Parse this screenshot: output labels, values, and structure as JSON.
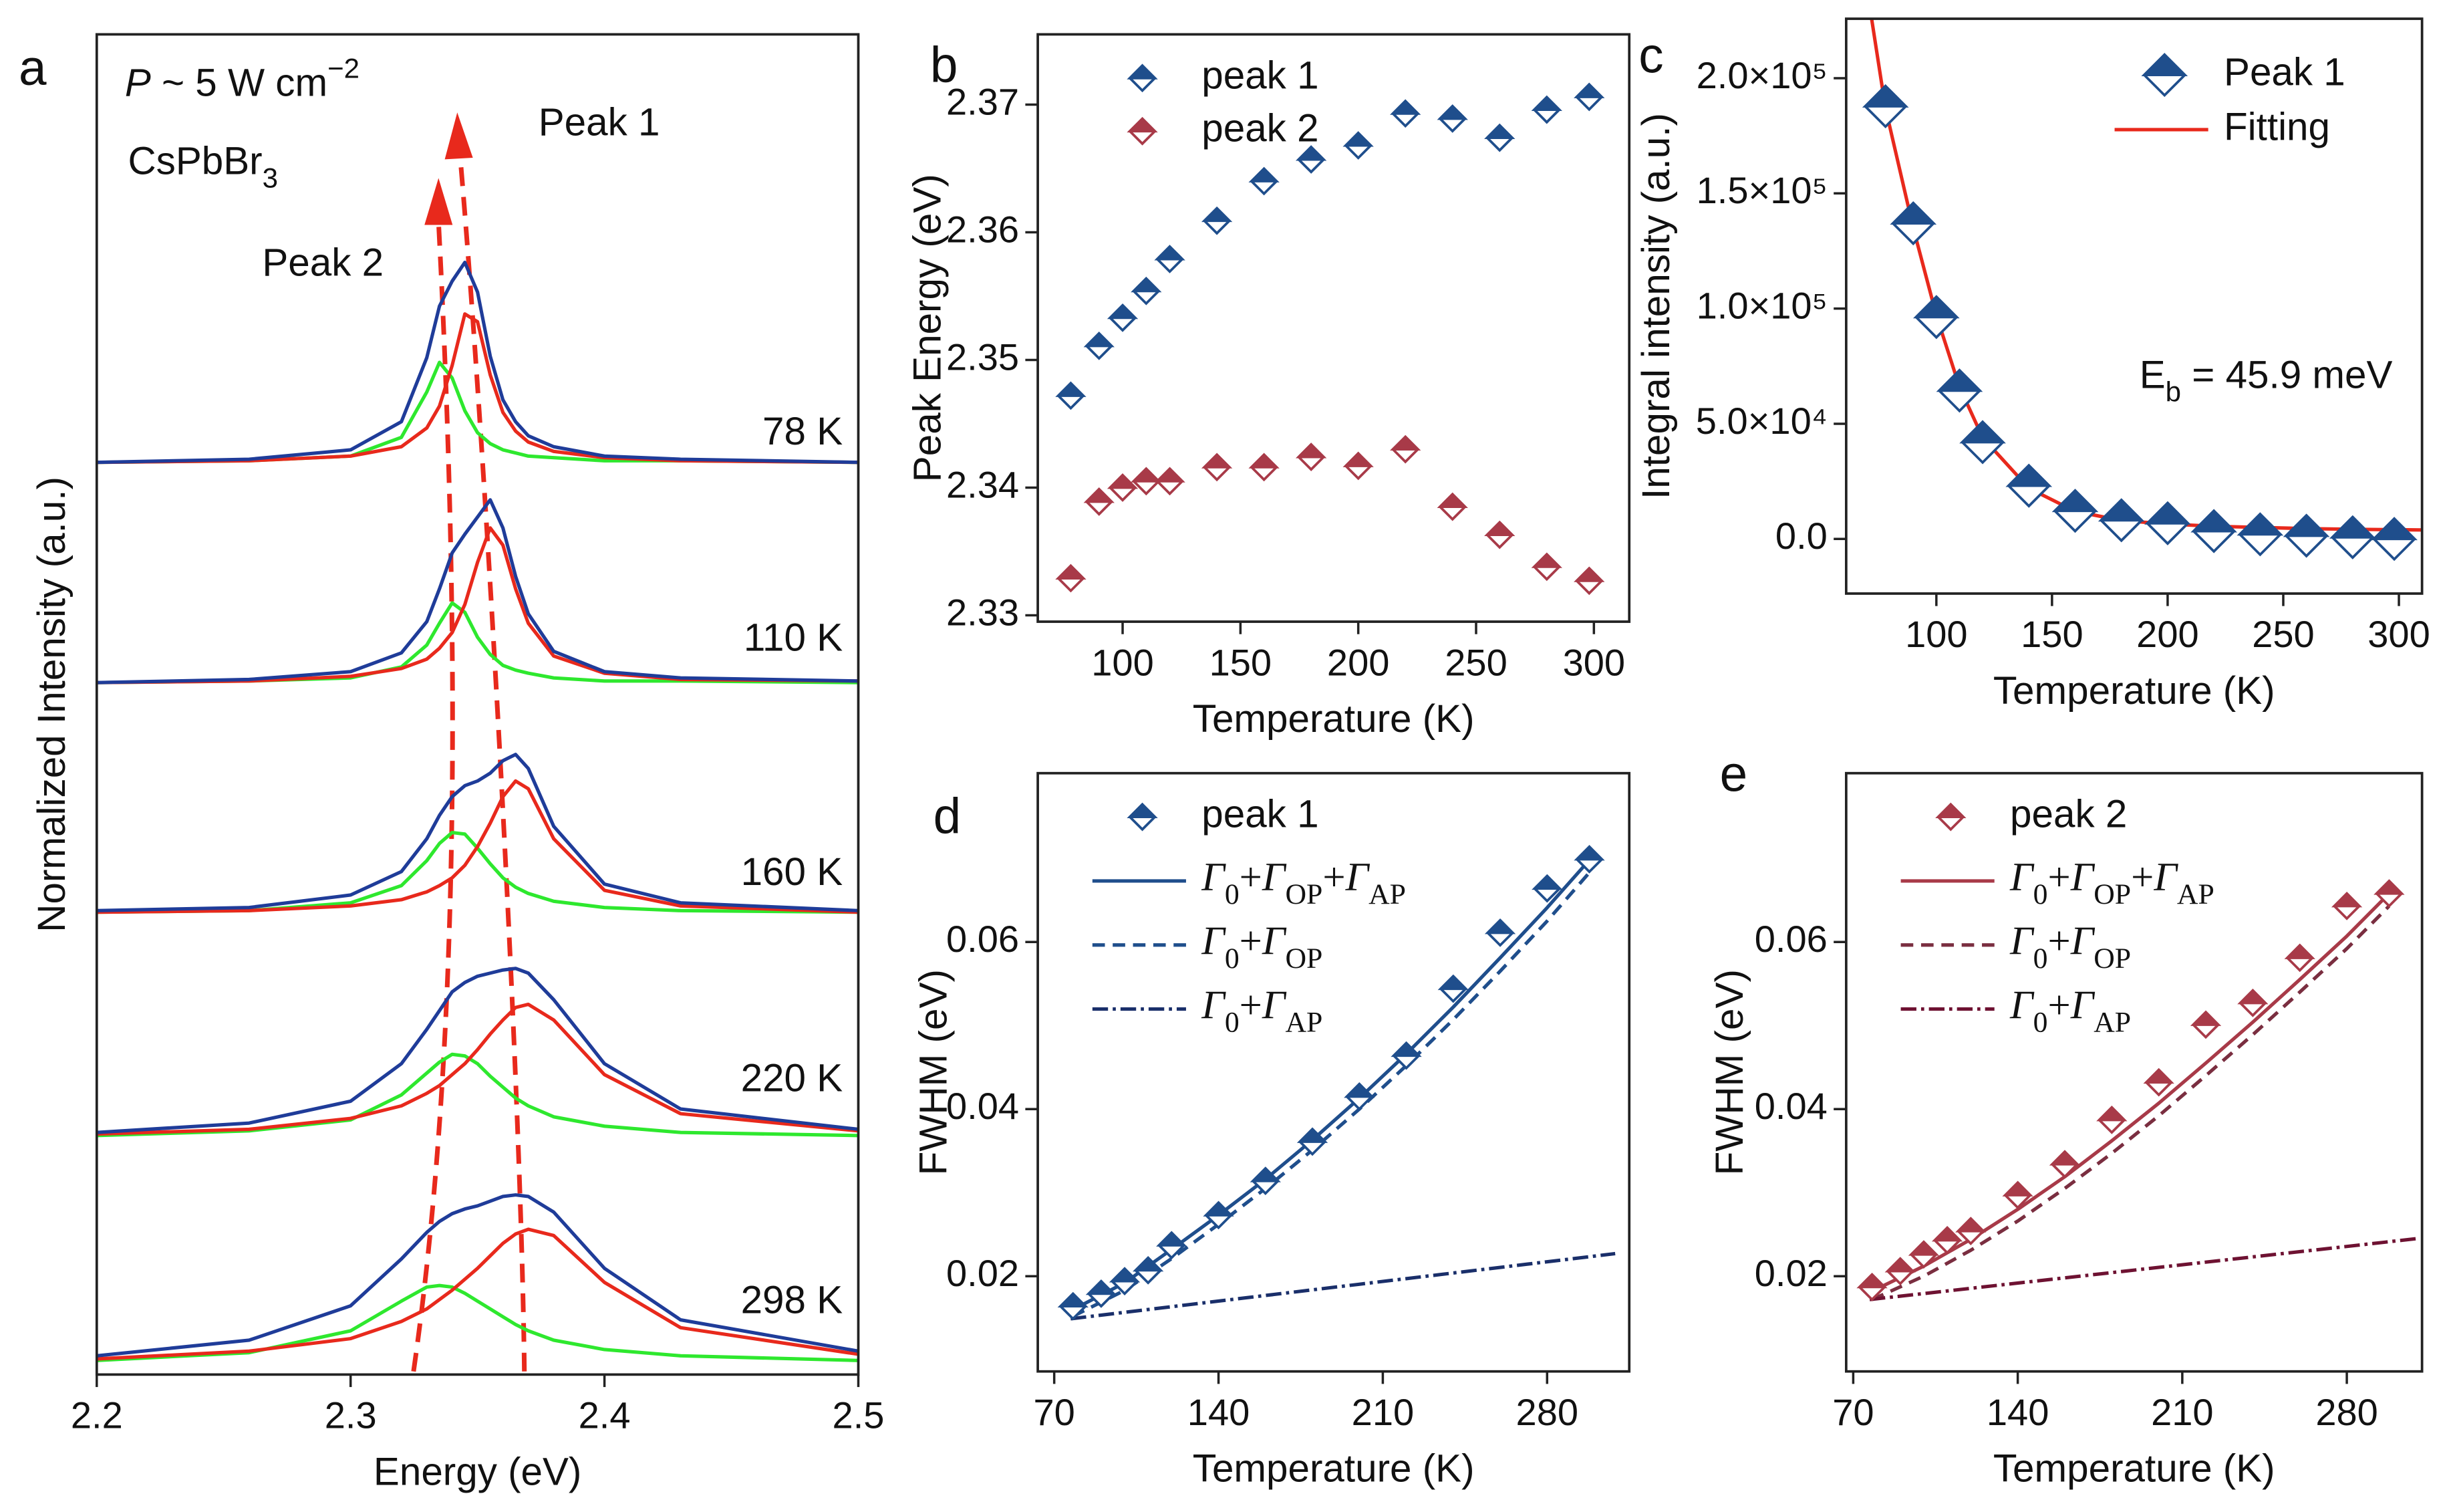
{
  "chart_data": [
    {
      "type": "line",
      "panel_label": "a",
      "x_label": "Energy (eV)",
      "y_label": "Normalized Intensity (a.u.)",
      "xlim": [
        2.2,
        2.5
      ],
      "ylim": [
        0,
        8.58
      ],
      "xticks": [
        2.2,
        2.3,
        2.4,
        2.5
      ],
      "x": [
        2.2,
        2.26,
        2.3,
        2.32,
        2.33,
        2.335,
        2.34,
        2.345,
        2.35,
        2.355,
        2.36,
        2.365,
        2.37,
        2.38,
        2.4,
        2.43,
        2.5
      ],
      "series": [
        {
          "color": "#2ee82e",
          "values": [
            5.84,
            5.85,
            5.88,
            6.0,
            6.29,
            6.48,
            6.38,
            6.17,
            6.03,
            5.96,
            5.92,
            5.9,
            5.88,
            5.87,
            5.85,
            5.85,
            5.84
          ]
        },
        {
          "color": "#e8291c",
          "values": [
            5.84,
            5.85,
            5.88,
            5.94,
            6.06,
            6.2,
            6.46,
            6.79,
            6.74,
            6.4,
            6.16,
            6.04,
            5.97,
            5.91,
            5.87,
            5.85,
            5.84
          ]
        },
        {
          "color": "#1f3c99",
          "values": [
            5.84,
            5.86,
            5.92,
            6.1,
            6.51,
            6.84,
            7.0,
            7.12,
            6.93,
            6.52,
            6.24,
            6.1,
            6.01,
            5.94,
            5.88,
            5.86,
            5.84
          ]
        },
        {
          "color": "#2ee82e",
          "values": [
            4.43,
            4.44,
            4.46,
            4.53,
            4.67,
            4.81,
            4.94,
            4.88,
            4.72,
            4.61,
            4.54,
            4.51,
            4.49,
            4.46,
            4.44,
            4.44,
            4.43
          ]
        },
        {
          "color": "#e8291c",
          "values": [
            4.43,
            4.44,
            4.47,
            4.52,
            4.58,
            4.65,
            4.75,
            4.93,
            5.2,
            5.42,
            5.31,
            5.03,
            4.81,
            4.6,
            4.49,
            4.45,
            4.44
          ]
        },
        {
          "color": "#1f3c99",
          "values": [
            4.43,
            4.45,
            4.5,
            4.62,
            4.82,
            5.03,
            5.26,
            5.38,
            5.49,
            5.6,
            5.42,
            5.11,
            4.87,
            4.63,
            4.5,
            4.46,
            4.44
          ]
        },
        {
          "color": "#2ee82e",
          "values": [
            2.96,
            2.97,
            3.02,
            3.13,
            3.29,
            3.4,
            3.47,
            3.46,
            3.37,
            3.27,
            3.18,
            3.12,
            3.08,
            3.03,
            2.99,
            2.97,
            2.96
          ]
        },
        {
          "color": "#e8291c",
          "values": [
            2.96,
            2.97,
            3.0,
            3.04,
            3.09,
            3.13,
            3.18,
            3.26,
            3.38,
            3.53,
            3.7,
            3.8,
            3.75,
            3.43,
            3.1,
            3.0,
            2.96
          ]
        },
        {
          "color": "#1f3c99",
          "values": [
            2.97,
            2.99,
            3.07,
            3.22,
            3.43,
            3.58,
            3.7,
            3.77,
            3.8,
            3.85,
            3.93,
            3.97,
            3.88,
            3.51,
            3.14,
            3.02,
            2.97
          ]
        },
        {
          "color": "#2ee82e",
          "values": [
            1.53,
            1.56,
            1.63,
            1.79,
            1.93,
            2.0,
            2.05,
            2.04,
            1.99,
            1.91,
            1.84,
            1.77,
            1.72,
            1.65,
            1.59,
            1.55,
            1.53
          ]
        },
        {
          "color": "#e8291c",
          "values": [
            1.54,
            1.57,
            1.64,
            1.72,
            1.8,
            1.85,
            1.92,
            1.99,
            2.08,
            2.18,
            2.27,
            2.35,
            2.37,
            2.27,
            1.92,
            1.67,
            1.56
          ]
        },
        {
          "color": "#1f3c99",
          "values": [
            1.55,
            1.61,
            1.75,
            1.99,
            2.21,
            2.33,
            2.45,
            2.51,
            2.55,
            2.57,
            2.59,
            2.6,
            2.57,
            2.4,
            1.99,
            1.7,
            1.57
          ]
        },
        {
          "color": "#2ee82e",
          "values": [
            0.09,
            0.14,
            0.28,
            0.47,
            0.56,
            0.57,
            0.56,
            0.52,
            0.47,
            0.42,
            0.37,
            0.32,
            0.28,
            0.22,
            0.16,
            0.12,
            0.09
          ]
        },
        {
          "color": "#e8291c",
          "values": [
            0.1,
            0.15,
            0.23,
            0.34,
            0.42,
            0.48,
            0.54,
            0.61,
            0.68,
            0.76,
            0.84,
            0.9,
            0.93,
            0.89,
            0.59,
            0.3,
            0.13
          ]
        },
        {
          "color": "#1f3c99",
          "values": [
            0.12,
            0.22,
            0.44,
            0.74,
            0.91,
            0.98,
            1.03,
            1.06,
            1.08,
            1.11,
            1.14,
            1.15,
            1.14,
            1.04,
            0.68,
            0.35,
            0.15
          ]
        }
      ],
      "annotations": [
        "P ~ 5 W cm−2",
        "CsPbBr3",
        "Peak 1",
        "Peak 2"
      ],
      "temperature_labels": [
        "78 K",
        "110 K",
        "160 K",
        "220 K",
        "298 K"
      ]
    },
    {
      "type": "scatter",
      "panel_label": "b",
      "x_label": "Temperature (K)",
      "y_label": "Peak Energy (eV)",
      "xlim": [
        64,
        315
      ],
      "ylim": [
        2.3295,
        2.3755
      ],
      "xticks": [
        100,
        150,
        200,
        250,
        300
      ],
      "yticks": [
        2.33,
        2.34,
        2.35,
        2.36,
        2.37
      ],
      "legend": "upper left",
      "x": [
        78,
        90,
        100,
        110,
        120,
        140,
        160,
        180,
        200,
        220,
        240,
        260,
        280,
        298
      ],
      "series": [
        {
          "name": "peak 1",
          "color": "#1f4e8c",
          "marker": "half-diamond",
          "values": [
            2.3472,
            2.3511,
            2.3533,
            2.3554,
            2.3579,
            2.3609,
            2.364,
            2.3657,
            2.3668,
            2.3693,
            2.3689,
            2.3674,
            2.3696,
            2.3706
          ]
        },
        {
          "name": "peak 2",
          "color": "#a83a48",
          "marker": "half-diamond",
          "values": [
            2.3329,
            2.3389,
            2.34,
            2.3405,
            2.3405,
            2.3416,
            2.3416,
            2.3424,
            2.3417,
            2.343,
            2.3385,
            2.3363,
            2.3338,
            2.3327
          ]
        }
      ]
    },
    {
      "type": "scatter",
      "panel_label": "c",
      "x_label": "Temperature (K)",
      "y_label": "Integral intensity (a.u.)",
      "xlim": [
        61,
        310
      ],
      "ylim": [
        -23700,
        225800
      ],
      "xticks": [
        100,
        150,
        200,
        250,
        300
      ],
      "yticks": [
        {
          "value": 0,
          "label": "0.0"
        },
        {
          "value": 50000,
          "label": "5.0×10⁴"
        },
        {
          "value": 100000,
          "label": "1.0×10⁵"
        },
        {
          "value": 150000,
          "label": "1.5×10⁵"
        },
        {
          "value": 200000,
          "label": "2.0×10⁵"
        }
      ],
      "legend": "upper right",
      "x": [
        78,
        90,
        100,
        110,
        120,
        140,
        160,
        180,
        200,
        220,
        240,
        260,
        280,
        298
      ],
      "series": [
        {
          "name": "Peak 1",
          "color": "#1f4e8c",
          "marker": "half-diamond",
          "values": [
            187800,
            137000,
            96300,
            64400,
            42000,
            23100,
            12200,
            8100,
            6800,
            3400,
            2000,
            1400,
            700,
            0
          ]
        },
        {
          "name": "Fitting",
          "color": "#e8291c",
          "line": "solid",
          "x": [
            72,
            78,
            90,
            100,
            110,
            120,
            140,
            160,
            180,
            200,
            220,
            240,
            260,
            280,
            300,
            310
          ],
          "values": [
            225800,
            187000,
            135000,
            97000,
            66000,
            44000,
            22000,
            12000,
            8000,
            6500,
            5500,
            5000,
            4500,
            4200,
            4000,
            3900
          ]
        }
      ],
      "annotations": [
        "Eb = 45.9 meV"
      ],
      "annotation_color": "#1f4e8c"
    },
    {
      "type": "scatter",
      "panel_label": "d",
      "x_label": "Temperature (K)",
      "y_label": "FWHM (eV)",
      "xlim": [
        63,
        315
      ],
      "ylim": [
        0.0086,
        0.0802
      ],
      "xticks": [
        70,
        140,
        210,
        280
      ],
      "yticks": [
        0.02,
        0.04,
        0.06
      ],
      "legend": "upper left",
      "x": [
        78,
        90,
        100,
        110,
        120,
        140,
        160,
        180,
        200,
        220,
        240,
        260,
        280,
        298
      ],
      "series": [
        {
          "name": "peak 1",
          "color": "#1f4e8c",
          "marker": "half-diamond",
          "values": [
            0.0164,
            0.0179,
            0.0194,
            0.0207,
            0.0237,
            0.0273,
            0.0314,
            0.0361,
            0.0415,
            0.0464,
            0.0544,
            0.0611,
            0.0664,
            0.0699
          ]
        },
        {
          "name": "Γ0+ΓOP+ΓAP",
          "color": "#1f4e8c",
          "line": "solid",
          "x": [
            78,
            100,
            120,
            140,
            160,
            180,
            200,
            220,
            240,
            260,
            280,
            298
          ],
          "values": [
            0.016,
            0.0192,
            0.0232,
            0.0273,
            0.0316,
            0.0363,
            0.0413,
            0.0466,
            0.0522,
            0.0581,
            0.0641,
            0.0698
          ]
        },
        {
          "name": "Γ0+ΓOP",
          "color": "#1f4e8c",
          "line": "dashed",
          "x": [
            78,
            100,
            120,
            140,
            160,
            180,
            200,
            220,
            240,
            260,
            280,
            298
          ],
          "values": [
            0.0152,
            0.0183,
            0.0221,
            0.0262,
            0.0305,
            0.0351,
            0.04,
            0.0452,
            0.0507,
            0.0565,
            0.0625,
            0.0683
          ]
        },
        {
          "name": "Γ0+ΓAP",
          "color": "#1a2f6a",
          "line": "dashdot",
          "x": [
            77,
            309
          ],
          "values": [
            0.0149,
            0.0227
          ]
        }
      ]
    },
    {
      "type": "scatter",
      "panel_label": "e",
      "x_label": "Temperature (K)",
      "y_label": "FWHM (eV)",
      "xlim": [
        67,
        312
      ],
      "ylim": [
        0.0086,
        0.0802
      ],
      "xticks": [
        70,
        140,
        210,
        280
      ],
      "yticks": [
        0.02,
        0.04,
        0.06
      ],
      "legend": "upper left",
      "x": [
        78,
        90,
        100,
        110,
        120,
        140,
        160,
        180,
        200,
        220,
        240,
        260,
        280,
        298
      ],
      "series": [
        {
          "name": "peak 2",
          "color": "#a83a48",
          "marker": "half-diamond",
          "values": [
            0.0187,
            0.0206,
            0.0226,
            0.0243,
            0.0254,
            0.0297,
            0.0334,
            0.0387,
            0.0432,
            0.0501,
            0.0527,
            0.0581,
            0.0643,
            0.0658
          ]
        },
        {
          "name": "Γ0+ΓOP+ΓAP",
          "color": "#a83a48",
          "line": "solid",
          "x": [
            78,
            100,
            120,
            140,
            160,
            180,
            200,
            220,
            240,
            260,
            280,
            298
          ],
          "values": [
            0.0182,
            0.0212,
            0.0244,
            0.028,
            0.0319,
            0.0362,
            0.0407,
            0.0455,
            0.0504,
            0.0555,
            0.0607,
            0.0658
          ]
        },
        {
          "name": "Γ0+ΓOP",
          "color": "#7a2e40",
          "line": "dashed",
          "x": [
            78,
            100,
            120,
            140,
            160,
            180,
            200,
            220,
            240,
            260,
            280,
            298
          ],
          "values": [
            0.0172,
            0.02,
            0.0231,
            0.0266,
            0.0305,
            0.0347,
            0.0392,
            0.044,
            0.0489,
            0.054,
            0.0592,
            0.0643
          ]
        },
        {
          "name": "Γ0+ΓAP",
          "color": "#6e1232",
          "line": "dashdot",
          "x": [
            77,
            310
          ],
          "values": [
            0.0172,
            0.0245
          ]
        }
      ]
    }
  ]
}
